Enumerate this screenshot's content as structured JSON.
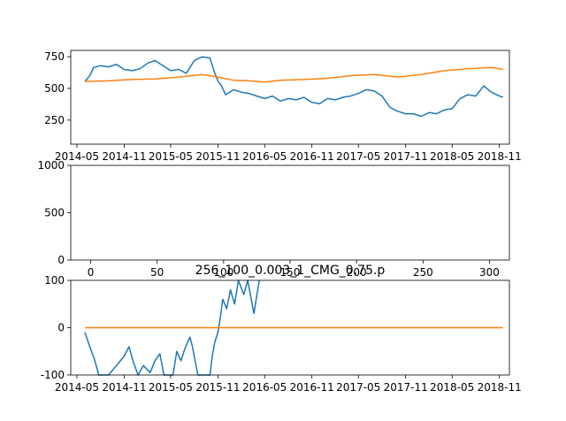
{
  "colors": {
    "series1": "#1f77b4",
    "series2": "#ff7f0e",
    "axes": "#000000",
    "background": "#ffffff"
  },
  "chart_data": [
    {
      "type": "line",
      "title": "",
      "xlabel": "",
      "ylabel": "",
      "x_is_date": true,
      "xlim": [
        "2014-04-07",
        "2018-12-10"
      ],
      "ylim": [
        60,
        800
      ],
      "x_ticks": [
        "2014-05",
        "2014-11",
        "2015-05",
        "2015-11",
        "2016-05",
        "2016-11",
        "2017-05",
        "2017-11",
        "2018-05",
        "2018-11"
      ],
      "y_ticks": [
        250,
        500,
        750
      ],
      "grid": false,
      "series": [
        {
          "color": "#1f77b4",
          "points": [
            [
              "2014-06-01",
              555
            ],
            [
              "2014-06-20",
              600
            ],
            [
              "2014-07-05",
              665
            ],
            [
              "2014-08-01",
              680
            ],
            [
              "2014-09-01",
              670
            ],
            [
              "2014-10-01",
              690
            ],
            [
              "2014-11-01",
              650
            ],
            [
              "2014-12-01",
              640
            ],
            [
              "2015-01-01",
              655
            ],
            [
              "2015-02-01",
              700
            ],
            [
              "2015-03-01",
              720
            ],
            [
              "2015-04-01",
              680
            ],
            [
              "2015-05-01",
              640
            ],
            [
              "2015-06-01",
              650
            ],
            [
              "2015-07-01",
              620
            ],
            [
              "2015-08-01",
              720
            ],
            [
              "2015-09-01",
              750
            ],
            [
              "2015-10-01",
              740
            ],
            [
              "2015-10-20",
              620
            ],
            [
              "2015-11-01",
              560
            ],
            [
              "2015-11-15",
              520
            ],
            [
              "2015-12-01",
              450
            ],
            [
              "2016-01-01",
              490
            ],
            [
              "2016-02-01",
              470
            ],
            [
              "2016-03-01",
              460
            ],
            [
              "2016-04-01",
              440
            ],
            [
              "2016-05-01",
              420
            ],
            [
              "2016-06-01",
              440
            ],
            [
              "2016-07-01",
              400
            ],
            [
              "2016-08-01",
              420
            ],
            [
              "2016-09-01",
              410
            ],
            [
              "2016-10-01",
              430
            ],
            [
              "2016-11-01",
              390
            ],
            [
              "2016-12-01",
              380
            ],
            [
              "2017-01-01",
              420
            ],
            [
              "2017-02-01",
              410
            ],
            [
              "2017-03-01",
              430
            ],
            [
              "2017-04-01",
              440
            ],
            [
              "2017-05-01",
              460
            ],
            [
              "2017-06-01",
              490
            ],
            [
              "2017-07-01",
              480
            ],
            [
              "2017-08-01",
              440
            ],
            [
              "2017-09-01",
              350
            ],
            [
              "2017-10-01",
              320
            ],
            [
              "2017-11-01",
              300
            ],
            [
              "2017-12-01",
              300
            ],
            [
              "2018-01-01",
              280
            ],
            [
              "2018-02-01",
              310
            ],
            [
              "2018-03-01",
              300
            ],
            [
              "2018-04-01",
              330
            ],
            [
              "2018-05-01",
              340
            ],
            [
              "2018-06-01",
              420
            ],
            [
              "2018-07-01",
              450
            ],
            [
              "2018-08-01",
              440
            ],
            [
              "2018-09-01",
              520
            ],
            [
              "2018-10-01",
              470
            ],
            [
              "2018-11-01",
              440
            ],
            [
              "2018-11-15",
              430
            ]
          ]
        },
        {
          "color": "#ff7f0e",
          "points": [
            [
              "2014-06-01",
              555
            ],
            [
              "2014-09-01",
              560
            ],
            [
              "2014-12-01",
              570
            ],
            [
              "2015-03-01",
              575
            ],
            [
              "2015-06-01",
              590
            ],
            [
              "2015-09-01",
              610
            ],
            [
              "2015-11-01",
              590
            ],
            [
              "2016-01-01",
              565
            ],
            [
              "2016-03-01",
              560
            ],
            [
              "2016-05-01",
              550
            ],
            [
              "2016-07-01",
              565
            ],
            [
              "2016-10-01",
              570
            ],
            [
              "2017-01-01",
              580
            ],
            [
              "2017-04-01",
              600
            ],
            [
              "2017-07-01",
              610
            ],
            [
              "2017-10-01",
              590
            ],
            [
              "2018-01-01",
              610
            ],
            [
              "2018-04-01",
              640
            ],
            [
              "2018-07-01",
              655
            ],
            [
              "2018-10-01",
              665
            ],
            [
              "2018-11-15",
              650
            ]
          ]
        }
      ]
    },
    {
      "type": "line",
      "title": "",
      "xlabel": "",
      "ylabel": "",
      "xlim": [
        -15,
        315
      ],
      "ylim": [
        0,
        1000
      ],
      "x_ticks": [
        0,
        50,
        100,
        150,
        200,
        250,
        300
      ],
      "y_ticks": [
        0,
        500,
        1000
      ],
      "grid": false,
      "series": []
    },
    {
      "type": "line",
      "title": "256_100_0.003_1_CMG_0.75.p",
      "xlabel": "",
      "ylabel": "",
      "x_is_date": true,
      "xlim": [
        "2014-04-07",
        "2018-12-10"
      ],
      "ylim": [
        -100,
        100
      ],
      "x_ticks": [
        "2014-05",
        "2014-11",
        "2015-05",
        "2015-11",
        "2016-05",
        "2016-11",
        "2017-05",
        "2017-11",
        "2018-05",
        "2018-11"
      ],
      "y_ticks": [
        -100,
        0,
        100
      ],
      "grid": false,
      "series": [
        {
          "color": "#1f77b4",
          "points": [
            [
              "2014-06-01",
              -10
            ],
            [
              "2014-06-20",
              -40
            ],
            [
              "2014-07-10",
              -70
            ],
            [
              "2014-07-25",
              -100
            ],
            [
              "2014-09-01",
              -100
            ],
            [
              "2014-10-10",
              -75
            ],
            [
              "2014-11-01",
              -60
            ],
            [
              "2014-11-20",
              -40
            ],
            [
              "2014-12-05",
              -70
            ],
            [
              "2014-12-25",
              -100
            ],
            [
              "2015-01-15",
              -80
            ],
            [
              "2015-02-10",
              -95
            ],
            [
              "2015-03-01",
              -70
            ],
            [
              "2015-03-20",
              -55
            ],
            [
              "2015-04-05",
              -100
            ],
            [
              "2015-05-10",
              -100
            ],
            [
              "2015-05-25",
              -50
            ],
            [
              "2015-06-10",
              -70
            ],
            [
              "2015-06-25",
              -45
            ],
            [
              "2015-07-15",
              -20
            ],
            [
              "2015-07-25",
              -40
            ],
            [
              "2015-08-15",
              -100
            ],
            [
              "2015-09-01",
              -100
            ],
            [
              "2015-10-01",
              -100
            ],
            [
              "2015-10-10",
              -60
            ],
            [
              "2015-10-20",
              -30
            ],
            [
              "2015-11-01",
              -10
            ],
            [
              "2015-11-10",
              20
            ],
            [
              "2015-11-20",
              60
            ],
            [
              "2015-12-05",
              40
            ],
            [
              "2015-12-20",
              80
            ],
            [
              "2016-01-05",
              50
            ],
            [
              "2016-01-20",
              100
            ],
            [
              "2016-02-10",
              70
            ],
            [
              "2016-02-25",
              100
            ],
            [
              "2016-03-20",
              30
            ],
            [
              "2016-04-10",
              100
            ]
          ]
        },
        {
          "color": "#ff7f0e",
          "points": [
            [
              "2014-06-01",
              0
            ],
            [
              "2018-11-15",
              0
            ]
          ]
        }
      ]
    }
  ]
}
